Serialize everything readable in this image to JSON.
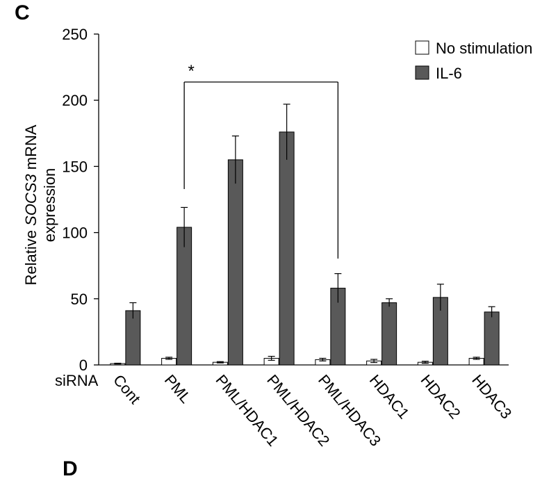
{
  "panel_label": "C",
  "next_panel_label": "D",
  "chart_data": {
    "type": "bar",
    "ylabel_prefix": "Relative ",
    "ylabel_gene": "SOCS3",
    "ylabel_suffix": " mRNA",
    "ylabel_line2": "expression",
    "xlabel": "siRNA",
    "ylim": [
      0,
      250
    ],
    "yticks": [
      0,
      50,
      100,
      150,
      200,
      250
    ],
    "categories": [
      "Cont",
      "PML",
      "PML/HDAC1",
      "PML/HDAC2",
      "PML/HDAC3",
      "HDAC1",
      "HDAC2",
      "HDAC3"
    ],
    "series": [
      {
        "name": "No stimulation",
        "color": "#ffffff",
        "values": [
          1,
          5,
          2,
          5,
          4,
          3,
          2,
          5
        ],
        "errors": [
          0.3,
          0.8,
          0.5,
          1.5,
          1.0,
          1.2,
          0.8,
          0.8
        ]
      },
      {
        "name": "IL-6",
        "color": "#595959",
        "values": [
          41,
          104,
          155,
          176,
          58,
          47,
          51,
          40
        ],
        "errors": [
          6,
          15,
          18,
          21,
          11,
          3,
          10,
          4
        ]
      }
    ],
    "legend_position": "top-right",
    "significance": {
      "from": "PML",
      "to": "PML/HDAC3",
      "label": "*"
    }
  }
}
